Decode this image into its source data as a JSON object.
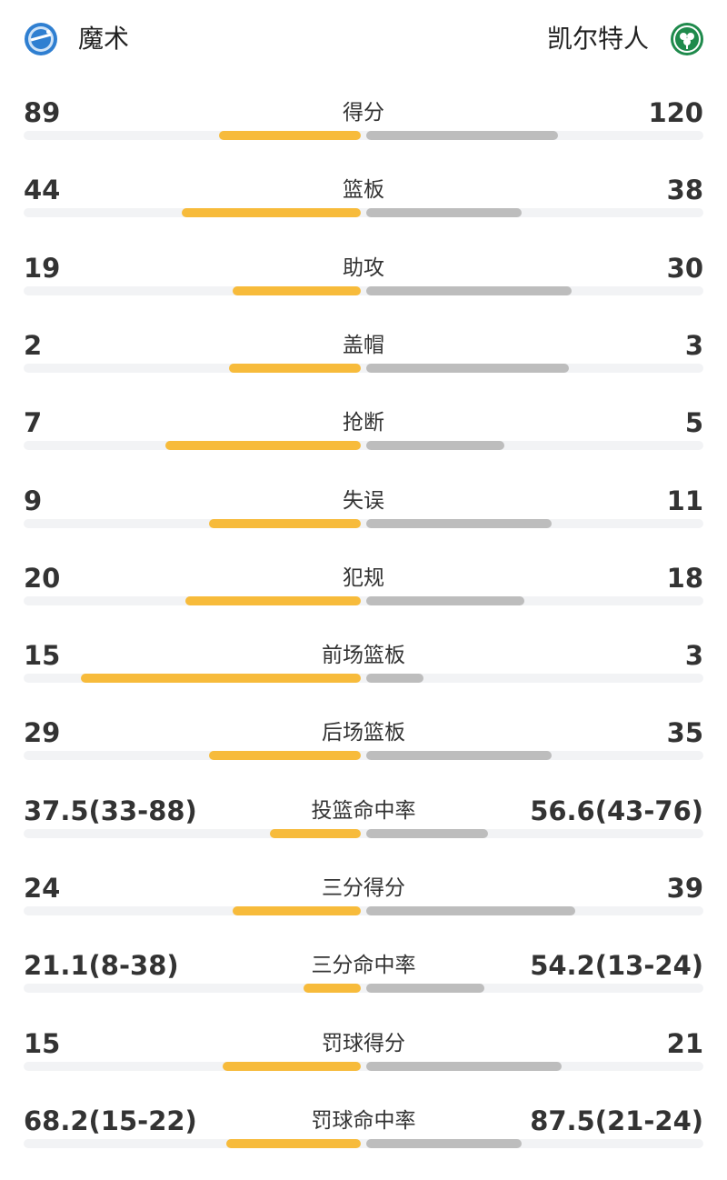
{
  "header": {
    "home": {
      "name": "魔术",
      "logo_icon": "magic-logo-icon"
    },
    "away": {
      "name": "凯尔特人",
      "logo_icon": "celtics-logo-icon"
    }
  },
  "colors": {
    "home_bar": "#f7bb3b",
    "away_bar": "#bdbdbd",
    "track": "#f2f3f5"
  },
  "stats": [
    {
      "label": "得分",
      "home": "89",
      "away": "120",
      "home_pct": 0.42,
      "away_pct": 0.57
    },
    {
      "label": "篮板",
      "home": "44",
      "away": "38",
      "home_pct": 0.53,
      "away_pct": 0.46
    },
    {
      "label": "助攻",
      "home": "19",
      "away": "30",
      "home_pct": 0.38,
      "away_pct": 0.61
    },
    {
      "label": "盖帽",
      "home": "2",
      "away": "3",
      "home_pct": 0.39,
      "away_pct": 0.6
    },
    {
      "label": "抢断",
      "home": "7",
      "away": "5",
      "home_pct": 0.58,
      "away_pct": 0.41
    },
    {
      "label": "失误",
      "home": "9",
      "away": "11",
      "home_pct": 0.45,
      "away_pct": 0.55
    },
    {
      "label": "犯规",
      "home": "20",
      "away": "18",
      "home_pct": 0.52,
      "away_pct": 0.47
    },
    {
      "label": "前场篮板",
      "home": "15",
      "away": "3",
      "home_pct": 0.83,
      "away_pct": 0.17
    },
    {
      "label": "后场篮板",
      "home": "29",
      "away": "35",
      "home_pct": 0.45,
      "away_pct": 0.55
    },
    {
      "label": "投篮命中率",
      "home": "37.5(33-88)",
      "away": "56.6(43-76)",
      "home_pct": 0.27,
      "away_pct": 0.36
    },
    {
      "label": "三分得分",
      "home": "24",
      "away": "39",
      "home_pct": 0.38,
      "away_pct": 0.62
    },
    {
      "label": "三分命中率",
      "home": "21.1(8-38)",
      "away": "54.2(13-24)",
      "home_pct": 0.17,
      "away_pct": 0.35
    },
    {
      "label": "罚球得分",
      "home": "15",
      "away": "21",
      "home_pct": 0.41,
      "away_pct": 0.58
    },
    {
      "label": "罚球命中率",
      "home": "68.2(15-22)",
      "away": "87.5(21-24)",
      "home_pct": 0.4,
      "away_pct": 0.46
    }
  ]
}
